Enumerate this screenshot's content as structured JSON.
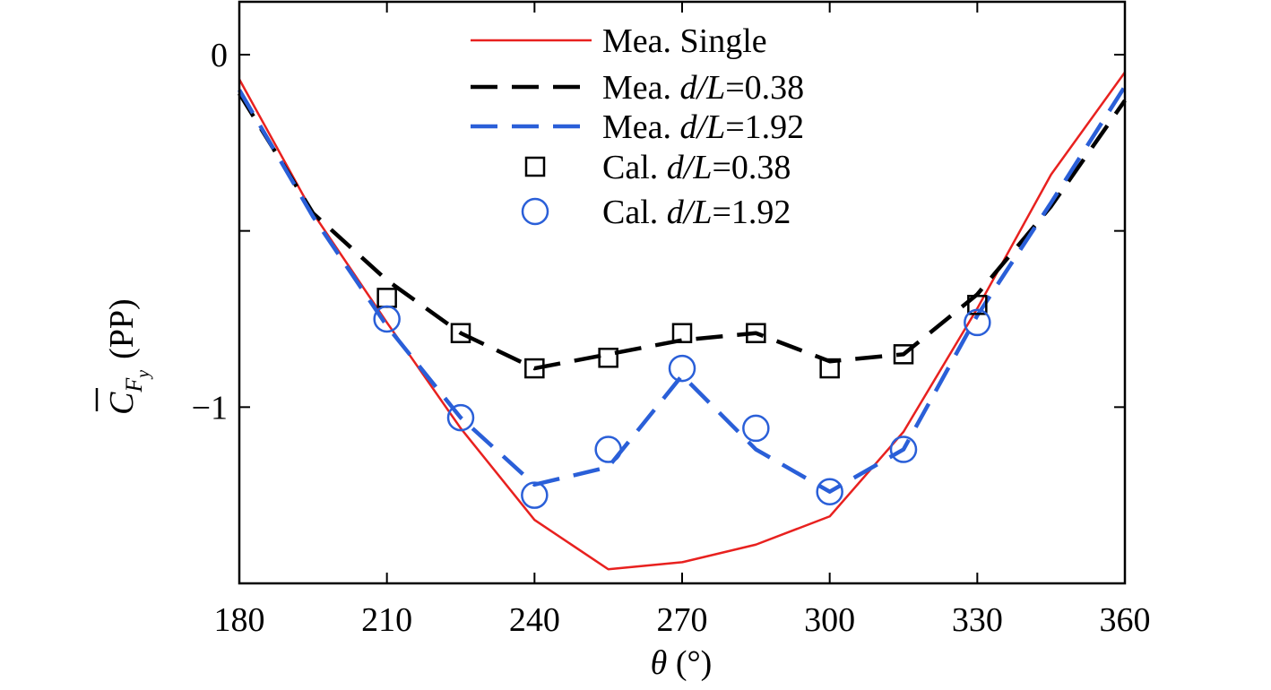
{
  "chart_data": {
    "type": "line",
    "xlabel": "θ (°)",
    "ylabel": "C_Fy (PP)",
    "xlim": [
      180,
      360
    ],
    "ylim": [
      -1.5,
      0.15
    ],
    "xticks": [
      180,
      210,
      240,
      270,
      300,
      330,
      360
    ],
    "yticks": [
      0,
      -0.5,
      -1
    ],
    "ytick_labels": [
      "0",
      "",
      "−1"
    ],
    "legend_position": "top-center",
    "series": [
      {
        "name": "Mea. Single",
        "style": "solid",
        "color": "#e8211f",
        "x": [
          180,
          195,
          210,
          225,
          240,
          255,
          270,
          285,
          300,
          315,
          330,
          345,
          360
        ],
        "y": [
          -0.07,
          -0.45,
          -0.76,
          -1.06,
          -1.32,
          -1.46,
          -1.44,
          -1.39,
          -1.31,
          -1.07,
          -0.72,
          -0.34,
          -0.05
        ]
      },
      {
        "name": "Mea. d/L=0.38",
        "style": "dashed",
        "color": "#000000",
        "x": [
          180,
          195,
          210,
          225,
          240,
          255,
          270,
          285,
          300,
          315,
          330,
          345,
          360
        ],
        "y": [
          -0.11,
          -0.45,
          -0.64,
          -0.79,
          -0.89,
          -0.85,
          -0.81,
          -0.79,
          -0.87,
          -0.85,
          -0.68,
          -0.43,
          -0.13
        ]
      },
      {
        "name": "Mea. d/L=1.92",
        "style": "dashed",
        "color": "#2a5fd8",
        "x": [
          180,
          195,
          210,
          225,
          240,
          255,
          270,
          285,
          300,
          315,
          330,
          345,
          360
        ],
        "y": [
          -0.1,
          -0.46,
          -0.77,
          -1.03,
          -1.22,
          -1.17,
          -0.91,
          -1.12,
          -1.24,
          -1.12,
          -0.74,
          -0.42,
          -0.09
        ]
      },
      {
        "name": "Cal. d/L=0.38",
        "style": "marker-square",
        "color": "#000000",
        "x": [
          210,
          225,
          240,
          255,
          270,
          285,
          300,
          315,
          330
        ],
        "y": [
          -0.69,
          -0.79,
          -0.89,
          -0.86,
          -0.79,
          -0.79,
          -0.89,
          -0.85,
          -0.71
        ]
      },
      {
        "name": "Cal. d/L=1.92",
        "style": "marker-circle",
        "color": "#2a5fd8",
        "x": [
          210,
          225,
          240,
          255,
          270,
          285,
          300,
          315,
          330
        ],
        "y": [
          -0.75,
          -1.03,
          -1.25,
          -1.12,
          -0.89,
          -1.06,
          -1.24,
          -1.12,
          -0.76
        ]
      }
    ]
  },
  "legend": [
    {
      "prefix": "Mea. Single",
      "var": "",
      "suffix": ""
    },
    {
      "prefix": "Mea. ",
      "var": "d/L",
      "suffix": "=0.38"
    },
    {
      "prefix": "Mea. ",
      "var": "d/L",
      "suffix": "=1.92"
    },
    {
      "prefix": "Cal. ",
      "var": "d/L",
      "suffix": "=0.38"
    },
    {
      "prefix": "Cal. ",
      "var": "d/L",
      "suffix": "=1.92"
    }
  ],
  "axis_text": {
    "x_symbol": "θ",
    "x_unit": " (°)",
    "y_symbol": "C",
    "y_sub": "F",
    "y_subsub": "y",
    "y_unit": "(PP)"
  }
}
